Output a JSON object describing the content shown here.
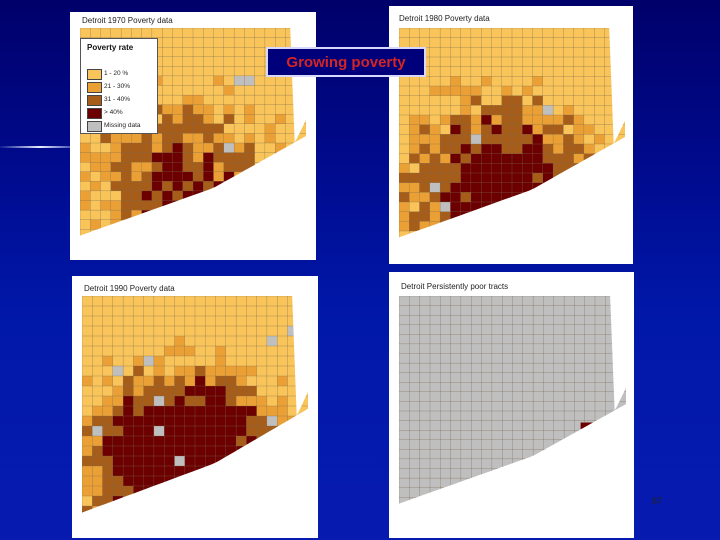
{
  "slide": {
    "callout": "Growing poverty",
    "page_number": "87"
  },
  "legend": {
    "title": "Poverty rate",
    "items": [
      {
        "label": "1 - 20 %",
        "color": "#f9c55a"
      },
      {
        "label": "21 - 30%",
        "color": "#eba035"
      },
      {
        "label": "31 - 40%",
        "color": "#a75d1a"
      },
      {
        "label": "> 40%",
        "color": "#6c0000"
      },
      {
        "label": "Missing data",
        "color": "#bfbfbf"
      }
    ]
  },
  "maps": [
    {
      "title": "Detroit 1970 Poverty data"
    },
    {
      "title": "Detroit 1980 Poverty data"
    },
    {
      "title": "Detroit 1990 Poverty data"
    },
    {
      "title": "Detroit Persistently poor tracts"
    }
  ],
  "colors": {
    "low": "#f9c55a",
    "mid": "#eba035",
    "high": "#a75d1a",
    "severe": "#6c0000",
    "missing": "#bfbfbf",
    "water": "#ffffff",
    "background": "#000a8c"
  }
}
